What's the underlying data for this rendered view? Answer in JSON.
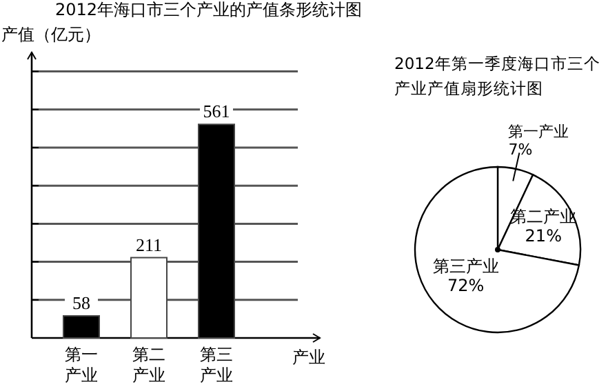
{
  "chart_data": [
    {
      "type": "bar",
      "title": "2012年海口市三个产业的产值条形统计图",
      "ylabel": "产值（亿元）",
      "xlabel": "产业",
      "categories": [
        "第一产业",
        "第二产业",
        "第三产业"
      ],
      "values": [
        58,
        211,
        561
      ],
      "colors": [
        "#000000",
        "#ffffff",
        "#000000"
      ],
      "data_labels": true,
      "ylim": [
        0,
        750
      ],
      "yticks": [
        {
          "value": 0,
          "label": null
        },
        {
          "value": 100,
          "label": null
        },
        {
          "value": 200,
          "label": null
        },
        {
          "value": 300,
          "label": null
        },
        {
          "value": 400,
          "label": null
        },
        {
          "value": 500,
          "label": null
        },
        {
          "value": 600,
          "label": null
        },
        {
          "value": 700,
          "label": null
        }
      ],
      "grid": "y",
      "tick_labels": "x"
    },
    {
      "type": "pie",
      "title": "2012年第一季度海口市三个产业产值扇形统计图",
      "categories": [
        "第一产业",
        "第二产业",
        "第三产业"
      ],
      "values": [
        7,
        21,
        72
      ],
      "value_labels": [
        "7%",
        "21%",
        "72%"
      ],
      "colors": [
        "#ffffff",
        "#ffffff",
        "#ffffff"
      ]
    }
  ]
}
